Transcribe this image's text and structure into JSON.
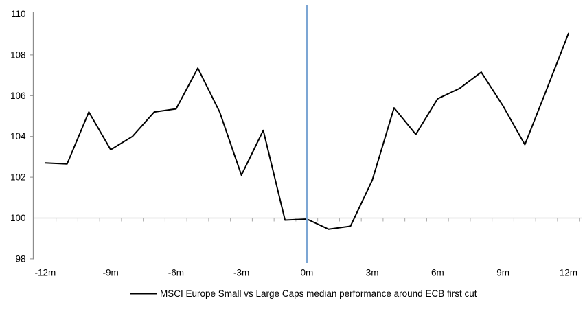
{
  "chart_data": {
    "type": "line",
    "title": "",
    "x_axis_label": "",
    "y_axis_label": "",
    "x_months": [
      -12,
      -11,
      -10,
      -9,
      -8,
      -7,
      -6,
      -5,
      -4,
      -3,
      -2,
      -1,
      0,
      1,
      2,
      3,
      4,
      5,
      6,
      7,
      8,
      9,
      10,
      11,
      12
    ],
    "series": [
      {
        "name": "MSCI Europe Small vs Large Caps median performance around ECB first cut",
        "color": "#000000",
        "values": [
          102.7,
          102.65,
          105.2,
          103.35,
          104.0,
          105.2,
          105.35,
          107.35,
          105.2,
          102.1,
          104.3,
          99.9,
          99.95,
          99.45,
          99.6,
          101.85,
          105.4,
          104.1,
          105.85,
          106.35,
          107.15,
          105.5,
          103.6,
          106.3,
          109.05
        ]
      }
    ],
    "y_ticks": [
      "98",
      "100",
      "102",
      "104",
      "106",
      "108",
      "110"
    ],
    "y_tick_values": [
      98,
      100,
      102,
      104,
      106,
      108,
      110
    ],
    "ylim": [
      98,
      110
    ],
    "x_tick_labels": [
      "-12m",
      "-9m",
      "-6m",
      "-3m",
      "0m",
      "3m",
      "6m",
      "9m",
      "12m"
    ],
    "x_tick_months": [
      -12,
      -9,
      -6,
      -3,
      0,
      3,
      6,
      9,
      12
    ],
    "baseline_value": 100,
    "event_line_month": 0,
    "colors": {
      "series_line": "#000000",
      "event_line": "#7CA6D4",
      "baseline": "#ABABAB",
      "axis": "#8C8C8C",
      "tick": "#A6A6A6"
    },
    "legend": {
      "label": "MSCI Europe Small vs Large Caps median performance around ECB first cut",
      "position": "bottom-center"
    },
    "grid": "baseline-only"
  }
}
